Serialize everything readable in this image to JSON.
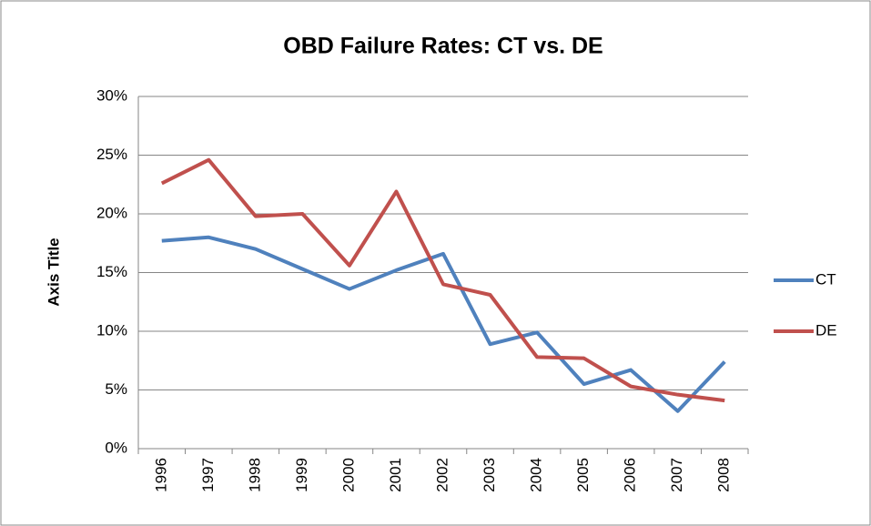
{
  "chart_data": {
    "type": "line",
    "title": "OBD Failure Rates: CT vs. DE",
    "y_label": "Axis Title",
    "categories": [
      "1996",
      "1997",
      "1998",
      "1999",
      "2000",
      "2001",
      "2002",
      "2003",
      "2004",
      "2005",
      "2006",
      "2007",
      "2008"
    ],
    "series": [
      {
        "name": "CT",
        "color": "#4f81bd",
        "values": [
          17.7,
          18.0,
          17.0,
          15.3,
          13.6,
          15.2,
          16.6,
          8.9,
          9.9,
          5.5,
          6.7,
          3.2,
          7.4
        ]
      },
      {
        "name": "DE",
        "color": "#c0504d",
        "values": [
          22.6,
          24.6,
          19.8,
          20.0,
          15.6,
          21.9,
          14.0,
          13.1,
          7.8,
          7.7,
          5.3,
          4.6,
          4.1
        ]
      }
    ],
    "ylim": [
      0,
      30
    ],
    "yticks": [
      {
        "value": 0,
        "label": "0%"
      },
      {
        "value": 5,
        "label": "5%"
      },
      {
        "value": 10,
        "label": "10%"
      },
      {
        "value": 15,
        "label": "15%"
      },
      {
        "value": 20,
        "label": "20%"
      },
      {
        "value": 25,
        "label": "25%"
      },
      {
        "value": 30,
        "label": "30%"
      }
    ],
    "grid": true,
    "legend": "right"
  }
}
